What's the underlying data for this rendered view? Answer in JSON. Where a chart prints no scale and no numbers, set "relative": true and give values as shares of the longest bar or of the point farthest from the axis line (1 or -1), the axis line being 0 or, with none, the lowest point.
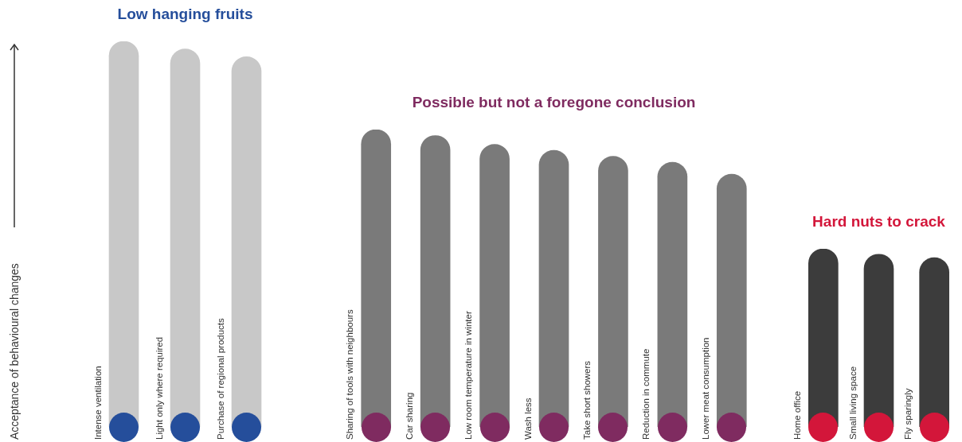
{
  "chart_data": [
    {
      "type": "bar",
      "title": "Low hanging fruits",
      "ylabel": "Acceptance of behavioural changes",
      "relative": true,
      "categories": [
        "Intense ventilation",
        "Light only where required",
        "Purchase of regional products"
      ],
      "series": [
        {
          "color": "#c8c8c8",
          "values": [
            1,
            0.98,
            0.96
          ]
        }
      ]
    },
    {
      "type": "bar",
      "title": "Possible but not a foregone conclusion",
      "relative": true,
      "categories": [
        "Sharing of tools with neighbours",
        "Car sharing",
        "Low room temperature in winter",
        "Wash less",
        "Take short showers",
        "Reduction in commute",
        "Lower meat consumption"
      ],
      "series": [
        {
          "color": "#7a7a7a",
          "values": [
            1,
            0.98,
            0.95,
            0.93,
            0.91,
            0.89,
            0.85
          ]
        }
      ]
    },
    {
      "type": "bar",
      "title": "Hard nuts to crack",
      "relative": true,
      "categories": [
        "Home office",
        "Small living space",
        "Fly sparingly"
      ],
      "series": [
        {
          "color": "#3c3c3c",
          "values": [
            1,
            0.97,
            0.95
          ]
        }
      ]
    }
  ]
}
